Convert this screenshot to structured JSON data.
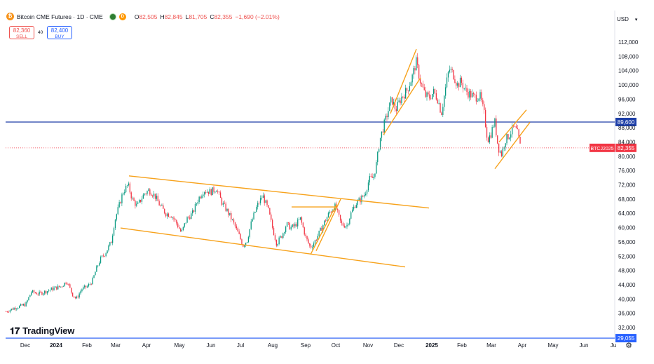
{
  "header": {
    "symbol_icon": "bitcoin-icon",
    "title": "Bitcoin CME Futures · 1D · CME",
    "status_icon": "market-open-dot-icon",
    "d_badge": "D",
    "ohlc": [
      {
        "key": "O",
        "value": "82,505"
      },
      {
        "key": "H",
        "value": "82,845"
      },
      {
        "key": "L",
        "value": "81,705"
      },
      {
        "key": "C",
        "value": "82,355"
      }
    ],
    "change": "−1,690 (−2.01%)"
  },
  "trade": {
    "sell_price": "82,360",
    "sell_label": "SELL",
    "spread": "40",
    "buy_price": "82,400",
    "buy_label": "BUY"
  },
  "currency": "USD",
  "branding": "TradingView",
  "colors": {
    "up": "#089981",
    "down": "#f23645",
    "trendline": "#f7a21b",
    "hline": "#1e3fa8",
    "price_line": "#f23645",
    "bottom_line": "#2962ff"
  },
  "chart_data": {
    "type": "candlestick",
    "y_ticks": [
      112000,
      108000,
      104000,
      100000,
      96000,
      92000,
      88000,
      84000,
      80000,
      76000,
      72000,
      68000,
      64000,
      60000,
      56000,
      52000,
      48000,
      44000,
      40000,
      36000,
      32000
    ],
    "ylim": [
      28600,
      115000
    ],
    "x_labels": [
      {
        "label": "Dec",
        "x": 36,
        "bold": false
      },
      {
        "label": "2024",
        "x": 80,
        "bold": true
      },
      {
        "label": "Feb",
        "x": 124,
        "bold": false
      },
      {
        "label": "Mar",
        "x": 165,
        "bold": false
      },
      {
        "label": "Apr",
        "x": 209,
        "bold": false
      },
      {
        "label": "May",
        "x": 256,
        "bold": false
      },
      {
        "label": "Jun",
        "x": 301,
        "bold": false
      },
      {
        "label": "Jul",
        "x": 343,
        "bold": false
      },
      {
        "label": "Aug",
        "x": 389,
        "bold": false
      },
      {
        "label": "Sep",
        "x": 436,
        "bold": false
      },
      {
        "label": "Oct",
        "x": 479,
        "bold": false
      },
      {
        "label": "Nov",
        "x": 525,
        "bold": false
      },
      {
        "label": "Dec",
        "x": 569,
        "bold": false
      },
      {
        "label": "2025",
        "x": 616,
        "bold": true
      },
      {
        "label": "Feb",
        "x": 659,
        "bold": false
      },
      {
        "label": "Mar",
        "x": 701,
        "bold": false
      },
      {
        "label": "Apr",
        "x": 745,
        "bold": false
      },
      {
        "label": "May",
        "x": 789,
        "bold": false
      },
      {
        "label": "Jun",
        "x": 833,
        "bold": false
      },
      {
        "label": "Ju",
        "x": 875,
        "bold": false
      }
    ],
    "price_path": [
      [
        8,
        36500
      ],
      [
        20,
        37500
      ],
      [
        36,
        38500
      ],
      [
        44,
        42000
      ],
      [
        55,
        41500
      ],
      [
        66,
        42200
      ],
      [
        76,
        43000
      ],
      [
        86,
        43500
      ],
      [
        95,
        45000
      ],
      [
        102,
        41500
      ],
      [
        108,
        40000
      ],
      [
        116,
        42800
      ],
      [
        124,
        43500
      ],
      [
        131,
        45000
      ],
      [
        136,
        48000
      ],
      [
        142,
        51000
      ],
      [
        150,
        53000
      ],
      [
        158,
        56000
      ],
      [
        163,
        62000
      ],
      [
        169,
        66000
      ],
      [
        175,
        70000
      ],
      [
        182,
        72000
      ],
      [
        188,
        68000
      ],
      [
        195,
        66000
      ],
      [
        205,
        69500
      ],
      [
        212,
        70500
      ],
      [
        220,
        69000
      ],
      [
        228,
        66000
      ],
      [
        236,
        64000
      ],
      [
        244,
        63500
      ],
      [
        252,
        61000
      ],
      [
        258,
        58500
      ],
      [
        266,
        62500
      ],
      [
        274,
        64000
      ],
      [
        282,
        68000
      ],
      [
        290,
        70500
      ],
      [
        300,
        70000
      ],
      [
        308,
        71000
      ],
      [
        316,
        67000
      ],
      [
        324,
        64500
      ],
      [
        332,
        61500
      ],
      [
        340,
        58000
      ],
      [
        346,
        55000
      ],
      [
        352,
        56500
      ],
      [
        358,
        61500
      ],
      [
        366,
        66000
      ],
      [
        374,
        69000
      ],
      [
        382,
        65000
      ],
      [
        388,
        60000
      ],
      [
        394,
        55500
      ],
      [
        402,
        58000
      ],
      [
        408,
        61000
      ],
      [
        414,
        60000
      ],
      [
        420,
        60500
      ],
      [
        428,
        62500
      ],
      [
        436,
        57000
      ],
      [
        442,
        54500
      ],
      [
        448,
        56000
      ],
      [
        456,
        59000
      ],
      [
        462,
        61500
      ],
      [
        470,
        64500
      ],
      [
        478,
        66000
      ],
      [
        486,
        61000
      ],
      [
        494,
        60500
      ],
      [
        500,
        64000
      ],
      [
        506,
        66500
      ],
      [
        514,
        68000
      ],
      [
        520,
        69500
      ],
      [
        526,
        73500
      ],
      [
        532,
        74000
      ],
      [
        537,
        78500
      ],
      [
        541,
        84500
      ],
      [
        546,
        88000
      ],
      [
        552,
        92000
      ],
      [
        558,
        96000
      ],
      [
        564,
        93000
      ],
      [
        572,
        96500
      ],
      [
        580,
        98500
      ],
      [
        587,
        102000
      ],
      [
        593,
        106500
      ],
      [
        599,
        101000
      ],
      [
        606,
        97000
      ],
      [
        612,
        96500
      ],
      [
        618,
        98000
      ],
      [
        624,
        96000
      ],
      [
        629,
        92000
      ],
      [
        634,
        98000
      ],
      [
        640,
        104500
      ],
      [
        646,
        103000
      ],
      [
        652,
        100000
      ],
      [
        657,
        101000
      ],
      [
        663,
        98500
      ],
      [
        669,
        97500
      ],
      [
        676,
        96500
      ],
      [
        684,
        97000
      ],
      [
        690,
        92000
      ],
      [
        695,
        84500
      ],
      [
        700,
        86500
      ],
      [
        705,
        90000
      ],
      [
        710,
        82500
      ],
      [
        715,
        80500
      ],
      [
        720,
        84500
      ],
      [
        726,
        86000
      ],
      [
        732,
        88000
      ],
      [
        737,
        87000
      ],
      [
        742,
        82355
      ]
    ],
    "trendlines": [
      [
        [
          184,
          74500
        ],
        [
          612,
          65500
        ]
      ],
      [
        [
          172,
          59900
        ],
        [
          578,
          49000
        ]
      ],
      [
        [
          416,
          65800
        ],
        [
          480,
          65800
        ]
      ],
      [
        [
          443,
          52500
        ],
        [
          480,
          66500
        ]
      ],
      [
        [
          451,
          53500
        ],
        [
          486,
          68000
        ]
      ],
      [
        [
          547,
          86000
        ],
        [
          600,
          102000
        ]
      ],
      [
        [
          557,
          92000
        ],
        [
          594,
          110000
        ]
      ],
      [
        [
          706,
          76500
        ],
        [
          756,
          89500
        ]
      ],
      [
        [
          712,
          84000
        ],
        [
          751,
          93000
        ]
      ]
    ],
    "horizontal_lines": [
      {
        "value": 89600,
        "label": "89,600"
      },
      {
        "value": 29055,
        "label": "29,055"
      }
    ],
    "last_price": {
      "symbol": "BTCJ2025",
      "value": 82355,
      "label": "82,355"
    }
  }
}
